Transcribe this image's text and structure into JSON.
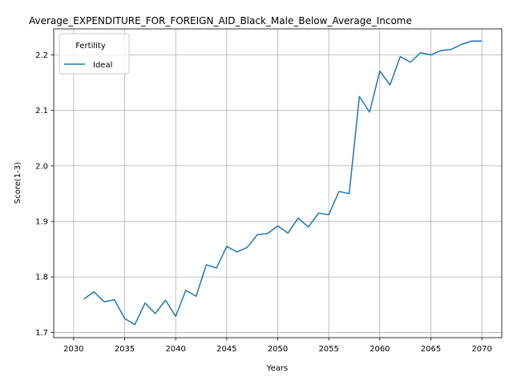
{
  "chart_data": {
    "type": "line",
    "title": "Average_EXPENDITURE_FOR_FOREIGN_AID_Black_Male_Below_Average_Income",
    "xlabel": "Years",
    "ylabel": "Score(1-3)",
    "xlim": [
      2028.05,
      2071.95
    ],
    "ylim": [
      1.6905,
      2.247
    ],
    "xticks": [
      2030,
      2035,
      2040,
      2045,
      2050,
      2055,
      2060,
      2065,
      2070
    ],
    "yticks": [
      1.7,
      1.8,
      1.9,
      2.0,
      2.1,
      2.2
    ],
    "ytick_labels": [
      "1.7",
      "1.8",
      "1.9",
      "2.0",
      "2.1",
      "2.2"
    ],
    "grid": true,
    "legend": {
      "title": "Fertility",
      "placement": "top-left"
    },
    "series": [
      {
        "name": "Ideal",
        "color": "#1f77b4",
        "x": [
          2031,
          2032,
          2033,
          2034,
          2035,
          2036,
          2037,
          2038,
          2039,
          2040,
          2041,
          2042,
          2043,
          2044,
          2045,
          2046,
          2047,
          2048,
          2049,
          2050,
          2051,
          2052,
          2053,
          2054,
          2055,
          2056,
          2057,
          2058,
          2059,
          2060,
          2061,
          2062,
          2063,
          2064,
          2065,
          2066,
          2067,
          2068,
          2069,
          2070
        ],
        "y": [
          1.76,
          1.773,
          1.755,
          1.759,
          1.725,
          1.714,
          1.753,
          1.734,
          1.758,
          1.729,
          1.776,
          1.765,
          1.822,
          1.816,
          1.855,
          1.845,
          1.853,
          1.876,
          1.878,
          1.892,
          1.879,
          1.906,
          1.89,
          1.915,
          1.912,
          1.954,
          1.95,
          2.125,
          2.097,
          2.171,
          2.146,
          2.197,
          2.187,
          2.204,
          2.2,
          2.208,
          2.21,
          2.219,
          2.225,
          2.225
        ]
      }
    ]
  }
}
